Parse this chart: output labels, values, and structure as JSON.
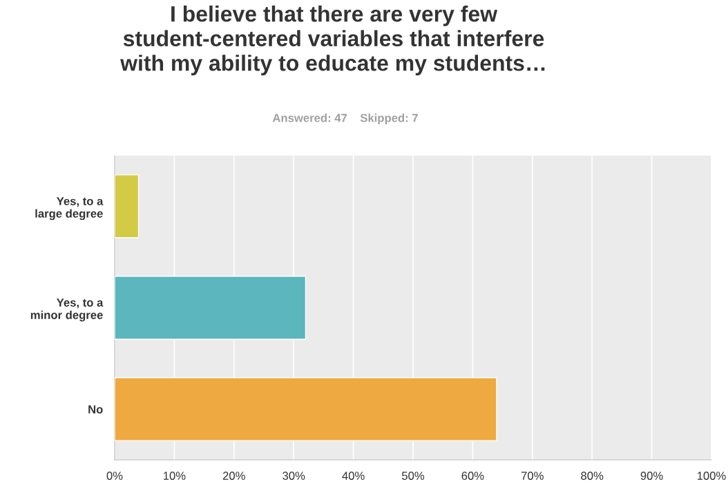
{
  "chart_data": {
    "type": "bar",
    "orientation": "horizontal",
    "title": "I believe that there are very few\nstudent-centered variables that interfere\nwith my ability to educate my students…",
    "subtitle": "Answered: 47    Skipped: 7",
    "categories": [
      "Yes, to a\nlarge degree",
      "Yes, to a\nminor degree",
      "No"
    ],
    "values": [
      4,
      32,
      64
    ],
    "colors": [
      "#d3cb46",
      "#5bb6bd",
      "#efa941"
    ],
    "xlim": [
      0,
      100
    ],
    "xticks": [
      {
        "value": 0,
        "label": "0%"
      },
      {
        "value": 10,
        "label": "10%"
      },
      {
        "value": 20,
        "label": "20%"
      },
      {
        "value": 30,
        "label": "30%"
      },
      {
        "value": 40,
        "label": "40%"
      },
      {
        "value": 50,
        "label": "50%"
      },
      {
        "value": 60,
        "label": "60%"
      },
      {
        "value": 70,
        "label": "70%"
      },
      {
        "value": 80,
        "label": "80%"
      },
      {
        "value": 90,
        "label": "90%"
      },
      {
        "value": 100,
        "label": "100%"
      }
    ],
    "grid": "x",
    "legend": false
  }
}
